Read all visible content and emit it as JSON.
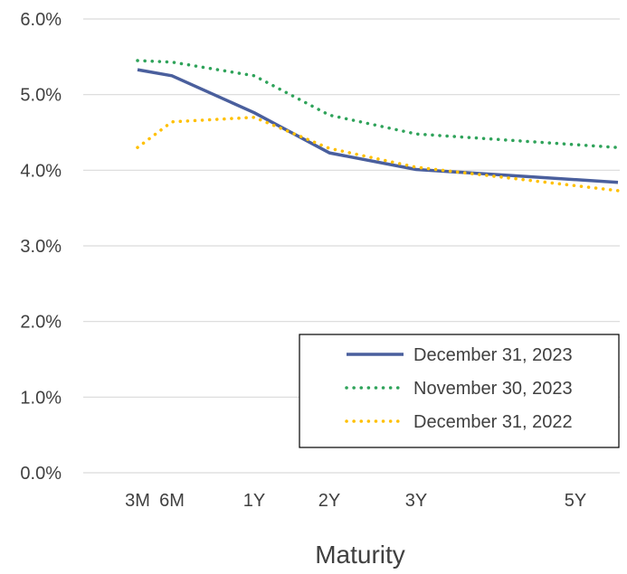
{
  "chart_data": {
    "type": "line",
    "title": "",
    "xlabel": "Maturity",
    "ylabel": "",
    "x_ticks": [
      {
        "label": "3M",
        "years": 0.25
      },
      {
        "label": "6M",
        "years": 0.5
      },
      {
        "label": "1Y",
        "years": 1
      },
      {
        "label": "2Y",
        "years": 2
      },
      {
        "label": "3Y",
        "years": 3
      },
      {
        "label": "5Y",
        "years": 5
      }
    ],
    "xlim": [
      0,
      5.5
    ],
    "ylim": [
      0,
      6
    ],
    "y_ticks": [
      "0.0%",
      "1.0%",
      "2.0%",
      "3.0%",
      "4.0%",
      "5.0%",
      "6.0%"
    ],
    "y_tick_values": [
      0,
      1,
      2,
      3,
      4,
      5,
      6
    ],
    "grid": "horizontal",
    "legend_position": "bottom-right",
    "series": [
      {
        "name": "December 31, 2023",
        "style": "solid",
        "color": "#4a5f9d",
        "points": [
          [
            0.25,
            5.33
          ],
          [
            0.5,
            5.25
          ],
          [
            1.0,
            4.76
          ],
          [
            2.0,
            4.23
          ],
          [
            3.0,
            4.01
          ],
          [
            5.5,
            3.84
          ]
        ]
      },
      {
        "name": "November 30, 2023",
        "style": "dotted",
        "color": "#2fa35a",
        "points": [
          [
            0.25,
            5.45
          ],
          [
            0.5,
            5.43
          ],
          [
            1.0,
            5.25
          ],
          [
            2.0,
            4.73
          ],
          [
            3.0,
            4.48
          ],
          [
            5.5,
            4.3
          ]
        ]
      },
      {
        "name": "December 31, 2022",
        "style": "dotted",
        "color": "#ffc000",
        "points": [
          [
            0.25,
            4.3
          ],
          [
            0.5,
            4.64
          ],
          [
            1.0,
            4.7
          ],
          [
            2.0,
            4.29
          ],
          [
            3.0,
            4.04
          ],
          [
            5.5,
            3.73
          ]
        ]
      }
    ]
  }
}
